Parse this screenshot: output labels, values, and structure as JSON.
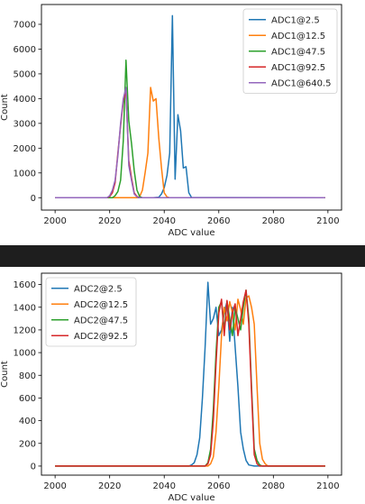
{
  "chart_data": [
    {
      "type": "line",
      "title": "",
      "xlabel": "ADC value",
      "ylabel": "Count",
      "xlim": [
        1995,
        2105
      ],
      "ylim": [
        -500,
        7800
      ],
      "xticks": [
        2000,
        2020,
        2040,
        2060,
        2080,
        2100
      ],
      "yticks": [
        0,
        1000,
        2000,
        3000,
        4000,
        5000,
        6000,
        7000
      ],
      "legend_position": "top-right",
      "grid": false,
      "series": [
        {
          "name": "ADC1@2.5",
          "color": "#1f77b4",
          "x": [
            2000,
            2036,
            2038,
            2039,
            2040,
            2041,
            2042,
            2043,
            2044,
            2045,
            2046,
            2047,
            2048,
            2049,
            2050,
            2099
          ],
          "y": [
            0,
            0,
            20,
            150,
            400,
            900,
            1800,
            7350,
            750,
            3350,
            2700,
            1200,
            1250,
            200,
            10,
            0
          ]
        },
        {
          "name": "ADC1@12.5",
          "color": "#ff7f0e",
          "x": [
            2000,
            2030,
            2031,
            2032,
            2033,
            2034,
            2035,
            2036,
            2037,
            2038,
            2039,
            2040,
            2041,
            2042,
            2099
          ],
          "y": [
            0,
            0,
            50,
            300,
            1000,
            1800,
            4450,
            3900,
            4000,
            2400,
            1200,
            200,
            30,
            0,
            0
          ]
        },
        {
          "name": "ADC1@47.5",
          "color": "#2ca02c",
          "x": [
            2000,
            2021,
            2022,
            2023,
            2024,
            2025,
            2026,
            2027,
            2028,
            2029,
            2030,
            2031,
            2032,
            2099
          ],
          "y": [
            0,
            0,
            80,
            250,
            700,
            2300,
            5550,
            3100,
            2200,
            1100,
            300,
            50,
            0,
            0
          ]
        },
        {
          "name": "ADC1@92.5",
          "color": "#d62728",
          "x": [
            2000,
            2019,
            2020,
            2021,
            2022,
            2023,
            2024,
            2025,
            2026,
            2027,
            2028,
            2029,
            2030,
            2031,
            2099
          ],
          "y": [
            0,
            0,
            50,
            200,
            600,
            1800,
            2900,
            3900,
            4300,
            1500,
            800,
            200,
            50,
            0,
            0
          ]
        },
        {
          "name": "ADC1@640.5",
          "color": "#9467bd",
          "x": [
            2000,
            2019,
            2020,
            2021,
            2022,
            2023,
            2024,
            2025,
            2026,
            2027,
            2028,
            2029,
            2030,
            2031,
            2099
          ],
          "y": [
            0,
            0,
            80,
            300,
            700,
            1700,
            3000,
            4000,
            4450,
            1300,
            700,
            150,
            30,
            0,
            0
          ]
        }
      ]
    },
    {
      "type": "line",
      "title": "",
      "xlabel": "ADC value",
      "ylabel": "Count",
      "xlim": [
        1995,
        2105
      ],
      "ylim": [
        -80,
        1700
      ],
      "xticks": [
        2000,
        2020,
        2040,
        2060,
        2080,
        2100
      ],
      "yticks": [
        0,
        200,
        400,
        600,
        800,
        1000,
        1200,
        1400,
        1600
      ],
      "legend_position": "top-left",
      "grid": false,
      "series": [
        {
          "name": "ADC2@2.5",
          "color": "#1f77b4",
          "x": [
            2000,
            2049,
            2050,
            2051,
            2052,
            2053,
            2054,
            2055,
            2056,
            2057,
            2058,
            2059,
            2060,
            2061,
            2062,
            2063,
            2064,
            2065,
            2066,
            2067,
            2068,
            2069,
            2070,
            2071,
            2072,
            2073,
            2099
          ],
          "y": [
            0,
            0,
            10,
            30,
            100,
            250,
            600,
            1050,
            1620,
            1250,
            1300,
            1400,
            1150,
            1200,
            1350,
            1450,
            1100,
            1400,
            1050,
            700,
            300,
            150,
            50,
            10,
            5,
            0,
            0
          ]
        },
        {
          "name": "ADC2@12.5",
          "color": "#ff7f0e",
          "x": [
            2000,
            2056,
            2057,
            2058,
            2059,
            2060,
            2061,
            2062,
            2063,
            2064,
            2065,
            2066,
            2067,
            2068,
            2069,
            2070,
            2071,
            2072,
            2073,
            2074,
            2075,
            2076,
            2077,
            2078,
            2099
          ],
          "y": [
            0,
            0,
            20,
            80,
            300,
            700,
            1150,
            1400,
            1280,
            1450,
            1350,
            1200,
            1470,
            1380,
            1250,
            1480,
            1500,
            1400,
            1250,
            700,
            200,
            60,
            20,
            0,
            0
          ]
        },
        {
          "name": "ADC2@47.5",
          "color": "#2ca02c",
          "x": [
            2000,
            2055,
            2056,
            2057,
            2058,
            2059,
            2060,
            2061,
            2062,
            2063,
            2064,
            2065,
            2066,
            2067,
            2068,
            2069,
            2070,
            2071,
            2072,
            2073,
            2074,
            2075,
            2076,
            2099
          ],
          "y": [
            0,
            0,
            30,
            150,
            500,
            1000,
            1400,
            1450,
            1200,
            1450,
            1300,
            1150,
            1400,
            1300,
            1200,
            1400,
            1550,
            1300,
            700,
            150,
            50,
            10,
            0,
            0
          ]
        },
        {
          "name": "ADC2@92.5",
          "color": "#d62728",
          "x": [
            2000,
            2055,
            2056,
            2057,
            2058,
            2059,
            2060,
            2061,
            2062,
            2063,
            2064,
            2065,
            2066,
            2067,
            2068,
            2069,
            2070,
            2071,
            2072,
            2073,
            2074,
            2075,
            2099
          ],
          "y": [
            0,
            0,
            20,
            100,
            400,
            900,
            1350,
            1470,
            1150,
            1460,
            1200,
            1350,
            1430,
            1150,
            1300,
            1450,
            1550,
            1250,
            650,
            100,
            20,
            0,
            0
          ]
        }
      ]
    }
  ]
}
